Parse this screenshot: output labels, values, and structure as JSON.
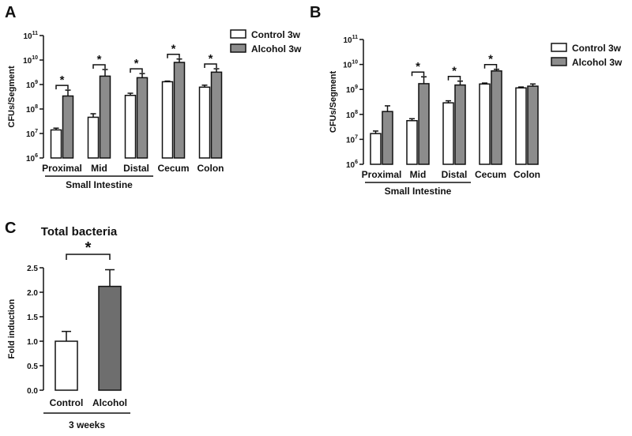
{
  "chart_data": [
    {
      "panel": "A",
      "type": "bar",
      "ylabel": "CFUs/Segment",
      "yscale": "log",
      "ylim": [
        1000000,
        100000000000
      ],
      "ytick_exponents": [
        "6",
        "7",
        "8",
        "9",
        "10",
        "11"
      ],
      "ytick_base": "10",
      "categories": [
        "Proximal",
        "Mid",
        "Distal",
        "Cecum",
        "Colon"
      ],
      "group_label": "Small Intestine",
      "group_span": [
        0,
        2
      ],
      "legend": "top-right",
      "significance": [
        true,
        true,
        true,
        true,
        true
      ],
      "series": [
        {
          "name": "Control 3w",
          "color": "#ffffff",
          "values": [
            14000000,
            46000000,
            360000000,
            1300000000,
            780000000
          ],
          "errors": [
            2500000,
            18000000,
            80000000,
            80000000,
            160000000
          ]
        },
        {
          "name": "Alcohol 3w",
          "color": "#8c8c8c",
          "values": [
            340000000,
            2200000000,
            1900000000,
            8000000000,
            3200000000
          ],
          "errors": [
            250000000,
            1900000000,
            900000000,
            3000000000,
            1200000000
          ]
        }
      ]
    },
    {
      "panel": "B",
      "type": "bar",
      "ylabel": "CFUs/Segment",
      "yscale": "log",
      "ylim": [
        1000000,
        100000000000
      ],
      "ytick_exponents": [
        "6",
        "7",
        "8",
        "9",
        "10",
        "11"
      ],
      "ytick_base": "10",
      "categories": [
        "Proximal",
        "Mid",
        "Distal",
        "Cecum",
        "Colon"
      ],
      "group_label": "Small Intestine",
      "group_span": [
        0,
        2
      ],
      "legend": "top-right",
      "significance": [
        false,
        true,
        true,
        true,
        false
      ],
      "series": [
        {
          "name": "Control 3w",
          "color": "#ffffff",
          "values": [
            17000000,
            56000000,
            290000000,
            1650000000,
            1150000000
          ],
          "errors": [
            4500000,
            11000000,
            60000000,
            150000000,
            100000000
          ]
        },
        {
          "name": "Alcohol 3w",
          "color": "#8c8c8c",
          "values": [
            130000000,
            1700000000,
            1500000000,
            5500000000,
            1350000000
          ],
          "errors": [
            90000000,
            1500000000,
            650000000,
            900000000,
            300000000
          ]
        }
      ]
    },
    {
      "panel": "C",
      "type": "bar",
      "title": "Total bacteria",
      "ylabel": "Fold induction",
      "ylim": [
        0,
        2.5
      ],
      "yticks": [
        "0.0",
        "0.5",
        "1.0",
        "1.5",
        "2.0",
        "2.5"
      ],
      "categories": [
        "Control",
        "Alcohol"
      ],
      "group_label": "3 weeks",
      "significance": [
        true
      ],
      "series": [
        {
          "name": "",
          "colors": [
            "#ffffff",
            "#6e6e6e"
          ],
          "values": [
            1.0,
            2.12
          ],
          "errors": [
            0.2,
            0.34
          ]
        }
      ]
    }
  ],
  "significance_mark": "*",
  "panel_letters": [
    "A",
    "B",
    "C"
  ]
}
